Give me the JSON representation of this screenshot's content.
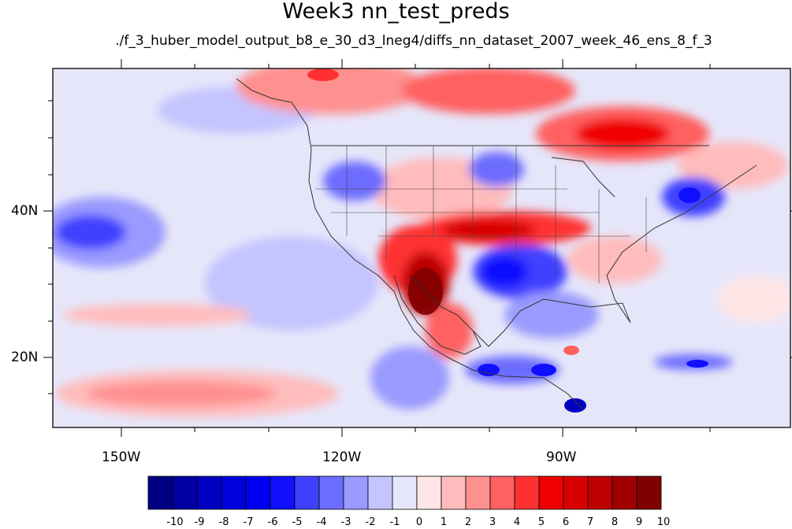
{
  "title": "Week3 nn_test_preds",
  "subtitle": "./f_3_huber_model_output_b8_e_30_d3_lneg4/diffs_nn_dataset_2007_week_46_ens_8_f_3",
  "chart_data": {
    "type": "heatmap",
    "title": "Week3 nn_test_preds",
    "subtitle": "./f_3_huber_model_output_b8_e_30_d3_lneg4/diffs_nn_dataset_2007_week_46_ens_8_f_3",
    "x_ticks": [
      "150W",
      "120W",
      "90W"
    ],
    "y_ticks": [
      "40N",
      "20N"
    ],
    "xlim_deg": [
      -160,
      -60
    ],
    "ylim_deg": [
      10,
      60
    ],
    "colorbar": {
      "labels": [
        "-10",
        "-9",
        "-8",
        "-7",
        "-6",
        "-5",
        "-4",
        "-3",
        "-2",
        "-1",
        "0",
        "1",
        "2",
        "3",
        "4",
        "5",
        "6",
        "7",
        "8",
        "9",
        "10"
      ],
      "colors": [
        "#000080",
        "#0000a3",
        "#0000c2",
        "#0000dd",
        "#0000f0",
        "#1010ff",
        "#4040ff",
        "#6c6cff",
        "#9a9aff",
        "#c4c4ff",
        "#e6e6fa",
        "#ffe6e6",
        "#ffbcbc",
        "#ff9090",
        "#ff6060",
        "#ff3030",
        "#f00000",
        "#d80000",
        "#bd0000",
        "#a00000",
        "#800000"
      ]
    }
  }
}
